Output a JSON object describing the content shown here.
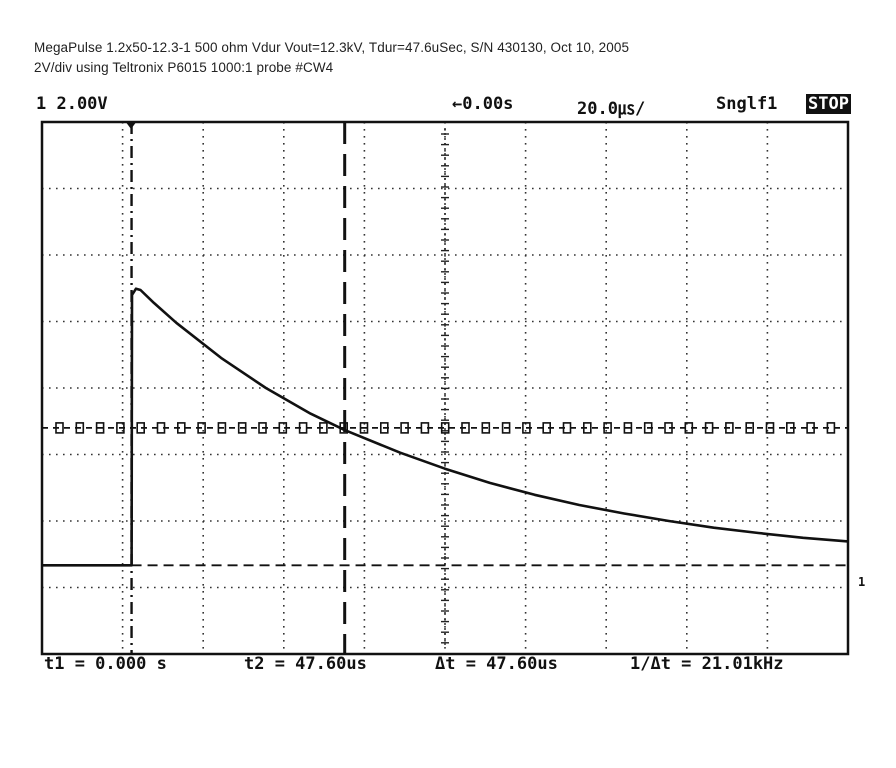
{
  "caption": {
    "line1": "MegaPulse 1.2x50-12.3-1 500 ohm Vdur Vout=12.3kV, Tdur=47.6uSec, S/N 430130, Oct 10, 2005",
    "line2": "2V/div using Teltronix P6015 1000:1 probe #CW4"
  },
  "header": {
    "channel_scale": "1 2.00V",
    "time_offset": "←0.00s",
    "time_per_div": "20.0㎲/",
    "mode": "Snglf1",
    "status": "STOP"
  },
  "measurements": {
    "t1": "t1 = 0.000 s",
    "t2": "t2 = 47.60us",
    "delta_t": "Δt = 47.60us",
    "inv_delta_t": "1/Δt = 21.01kHz"
  },
  "ground_marker": "1",
  "chart_data": {
    "type": "line",
    "title": "",
    "xlabel": "",
    "ylabel": "",
    "x_unit": "us",
    "y_unit": "V (scope, 2V/div)",
    "xlim": [
      -20,
      160
    ],
    "ylim": [
      -2,
      10
    ],
    "grid": true,
    "divisions": {
      "x": 10,
      "y": 8
    },
    "cursors": {
      "t1": 0,
      "t2": 47.6
    },
    "threshold_level": 3.1,
    "series": [
      {
        "x": [
          -20,
          0,
          0.1,
          1,
          2,
          5,
          10,
          20,
          30,
          40,
          47.6,
          60,
          70,
          80,
          90,
          100,
          110,
          120,
          130,
          140,
          150,
          160
        ],
        "y": [
          0,
          0,
          6.1,
          6.24,
          6.21,
          5.92,
          5.47,
          4.68,
          4.0,
          3.42,
          3.05,
          2.54,
          2.18,
          1.86,
          1.59,
          1.36,
          1.17,
          1.0,
          0.85,
          0.73,
          0.62,
          0.54
        ]
      }
    ]
  }
}
